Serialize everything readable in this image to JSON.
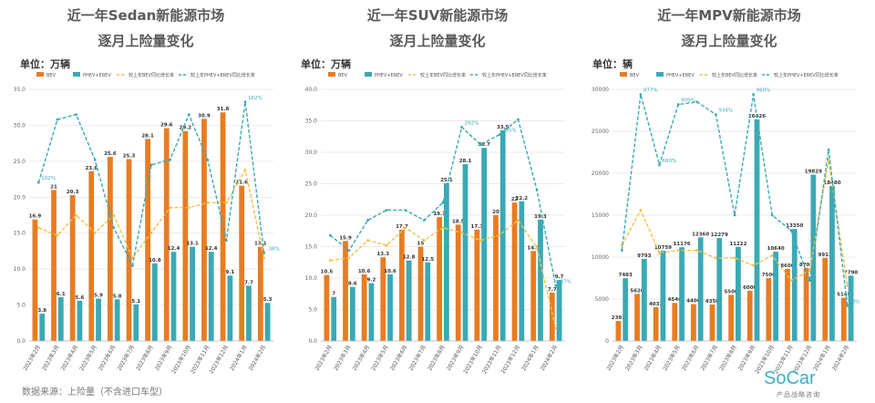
{
  "colors": {
    "bev": "#E87C22",
    "phev": "#3BA9B4",
    "bev_yoy": "#F2C14E",
    "phev_yoy": "#3BA9B4"
  },
  "months": [
    "2023年2月",
    "2023年3月",
    "2023年4月",
    "2023年5月",
    "2023年6月",
    "2023年7月",
    "2023年8月",
    "2023年9月",
    "2023年10月",
    "2023年11月",
    "2023年12月",
    "2024年1月",
    "2024年2月"
  ],
  "footnote": "数据来源：上险量（不含进口车型）",
  "logo": {
    "brand": "SoCar",
    "sub": "产品战略咨询"
  },
  "chart_data": [
    {
      "type": "bar",
      "title": "近一年Sedan新能源市场",
      "subtitle": "逐月上险量变化",
      "unit": "单位：万辆",
      "ylim": [
        0,
        35
      ],
      "yticks": [
        "0.0",
        "5.0",
        "10.0",
        "15.0",
        "20.0",
        "25.0",
        "30.0",
        "35.0"
      ],
      "legend": [
        "BEV",
        "PHEV+EREV",
        "较上年BEV同比增长率",
        "较上年PHEV+EREV同比增长率"
      ],
      "series": [
        {
          "name": "BEV",
          "values": [
            16.9,
            21.0,
            20.3,
            23.6,
            25.6,
            25.3,
            28.1,
            29.6,
            29.2,
            30.9,
            31.8,
            21.6,
            13.1
          ]
        },
        {
          "name": "PHEV+EREV",
          "values": [
            3.8,
            6.1,
            5.6,
            5.9,
            5.8,
            5.1,
            10.8,
            12.4,
            13.1,
            12.4,
            9.1,
            7.7,
            5.3
          ]
        }
      ],
      "yoy_bev": [
        0.45,
        0.42,
        0.5,
        0.43,
        0.5,
        0.33,
        0.43,
        0.53,
        0.53,
        0.55,
        0.55,
        0.68,
        0.33
      ],
      "yoy_phev": [
        0.63,
        0.88,
        0.9,
        0.72,
        0.45,
        0.3,
        0.7,
        0.72,
        0.9,
        0.72,
        0.4,
        0.95,
        0.35
      ],
      "yoy_labels": [
        "102%",
        "",
        "",
        "",
        "",
        "",
        "",
        "",
        "",
        "",
        "",
        "162%",
        "-38%"
      ]
    },
    {
      "type": "bar",
      "title": "近一年SUV新能源市场",
      "subtitle": "逐月上险量变化",
      "unit": "单位：万辆",
      "ylim": [
        0,
        40
      ],
      "yticks": [
        "0.0",
        "5.0",
        "10.0",
        "15.0",
        "20.0",
        "25.0",
        "30.0",
        "35.0",
        "40.0"
      ],
      "legend": [
        "BEV",
        "PHEV+EREV",
        "较上年BEV同比增长率",
        "较上年PHEV+EREV同比增长率"
      ],
      "series": [
        {
          "name": "BEV",
          "values": [
            10.5,
            15.9,
            10.6,
            13.3,
            17.7,
            15.0,
            19.7,
            18.5,
            17.7,
            20.0,
            22.0,
            14.3,
            7.7
          ]
        },
        {
          "name": "PHEV+EREV",
          "values": [
            7.0,
            8.6,
            9.2,
            10.6,
            12.8,
            12.5,
            25.1,
            28.1,
            30.7,
            33.5,
            22.2,
            19.3,
            9.7
          ]
        }
      ],
      "yoy_bev": [
        0.32,
        0.33,
        0.4,
        0.38,
        0.45,
        0.4,
        0.45,
        0.43,
        0.4,
        0.42,
        0.48,
        0.37,
        0.05
      ],
      "yoy_phev": [
        0.42,
        0.36,
        0.48,
        0.52,
        0.52,
        0.48,
        0.55,
        0.85,
        0.78,
        0.82,
        0.88,
        0.6,
        0.22
      ],
      "yoy_labels": [
        "",
        "",
        "",
        "",
        "",
        "",
        "",
        "292%",
        "",
        "295%",
        "",
        "",
        "-27%"
      ]
    },
    {
      "type": "bar",
      "title": "近一年MPV新能源市场",
      "subtitle": "逐月上险量变化",
      "unit": "单位：辆",
      "ylim": [
        0,
        30000
      ],
      "yticks": [
        "0",
        "5000",
        "10000",
        "15000",
        "20000",
        "25000",
        "30000"
      ],
      "legend": [
        "BEV",
        "PHEV+EREV",
        "较上年BEV同比增长率",
        "较上年PHEV+EREV同比增长率"
      ],
      "series": [
        {
          "name": "BEV",
          "values": [
            2392,
            5620,
            4033,
            4540,
            4400,
            4350,
            5500,
            6000,
            7500,
            8600,
            8700,
            9913,
            5149
          ]
        },
        {
          "name": "PHEV+EREV",
          "values": [
            7483,
            9793,
            10759,
            11176,
            12360,
            12279,
            11222,
            26426,
            10640,
            13350,
            19829,
            18480,
            7790
          ]
        }
      ],
      "yoy_bev": [
        0.38,
        0.52,
        0.35,
        0.36,
        0.36,
        0.33,
        0.33,
        0.3,
        0.34,
        0.24,
        0.28,
        0.72,
        0.22
      ],
      "yoy_phev": [
        0.36,
        0.98,
        0.7,
        0.94,
        0.95,
        0.9,
        0.5,
        0.98,
        0.5,
        0.44,
        0.24,
        0.76,
        0.14
      ],
      "yoy_labels": [
        "",
        "977%",
        "660%",
        "909%",
        "",
        "934%",
        "",
        "960%",
        "",
        "",
        "",
        "",
        "-3%"
      ]
    }
  ]
}
